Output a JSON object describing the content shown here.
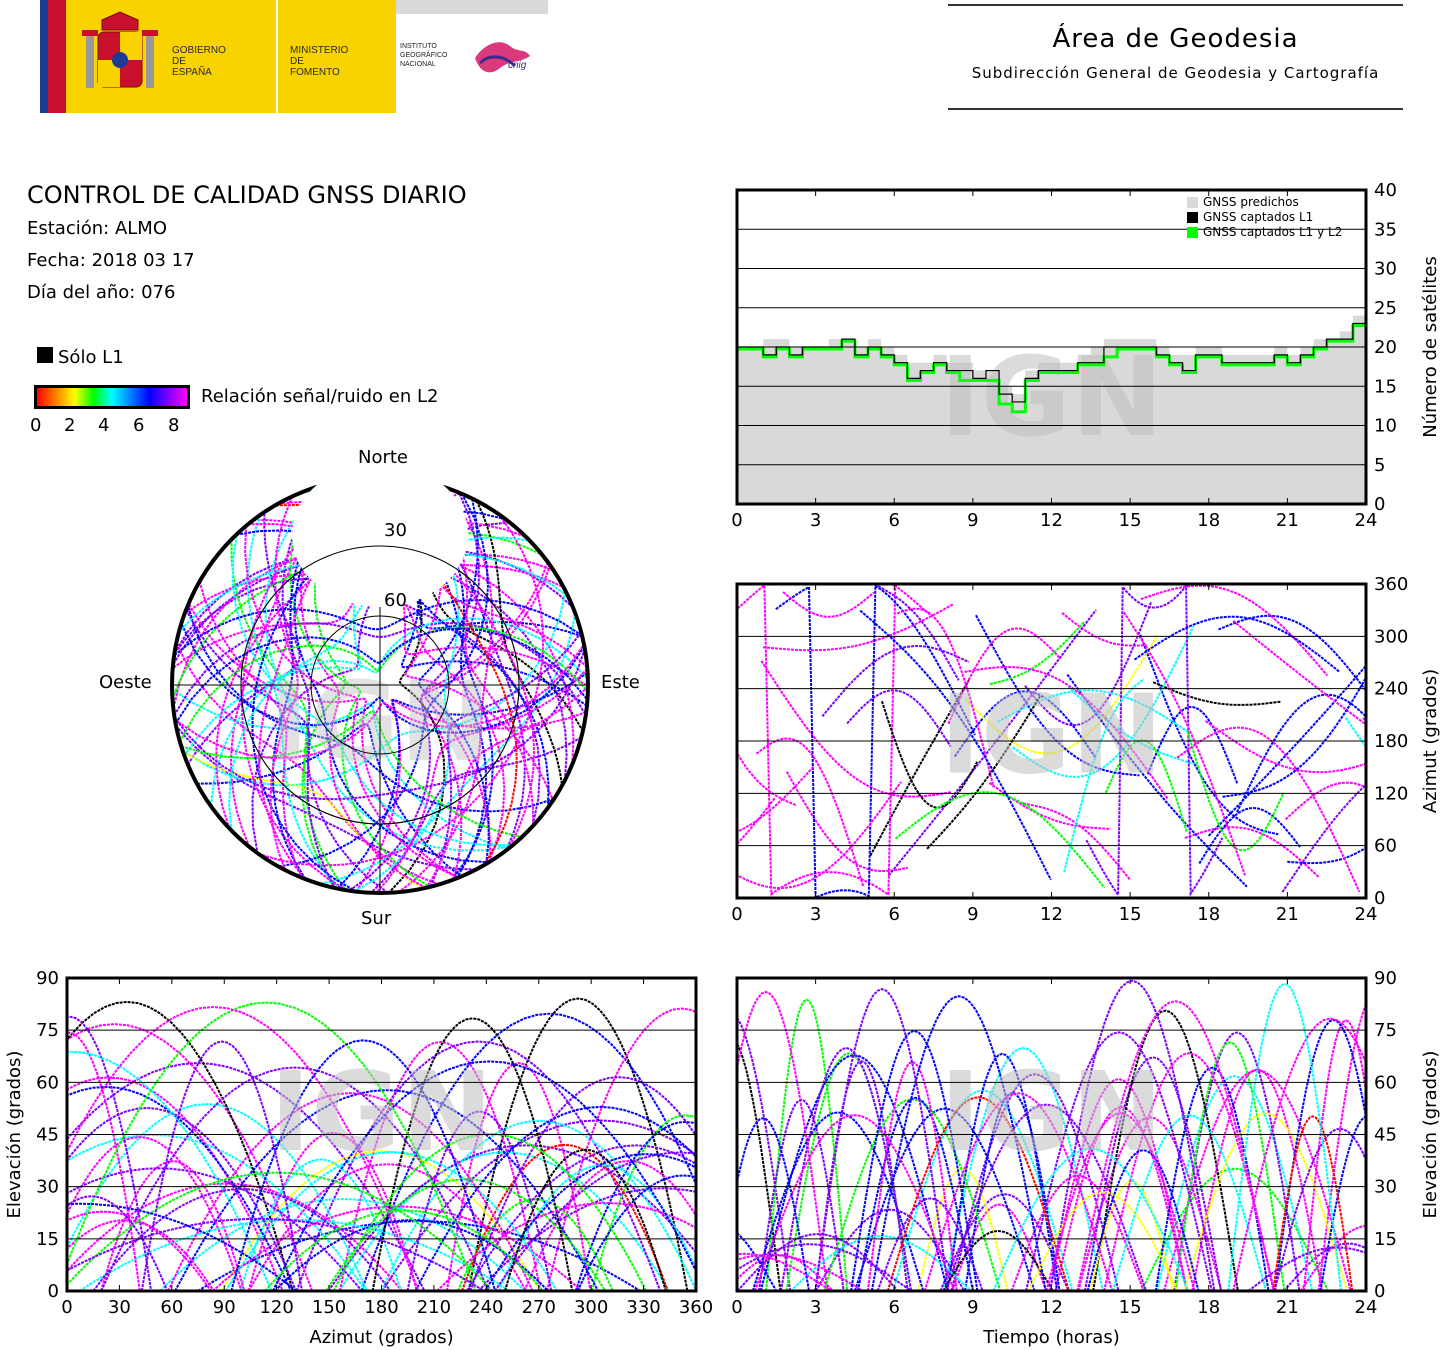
{
  "header": {
    "gov_name": [
      "GOBIERNO",
      "DE ESPAÑA"
    ],
    "ministry": [
      "MINISTERIO",
      "DE FOMENTO"
    ],
    "institute": [
      "INSTITUTO",
      "GEOGRÁFICO",
      "NACIONAL"
    ],
    "cnig": "cnig",
    "area_title": "Área de Geodesia",
    "area_subtitle": "Subdirección General de Geodesia y Cartografía"
  },
  "info": {
    "title": "CONTROL DE CALIDAD GNSS DIARIO",
    "station": "Estación: ALMO",
    "date": "Fecha: 2018 03 17",
    "doy": "Día del año: 076"
  },
  "legend": {
    "l1_only": "Sólo L1",
    "snr_label": "Relación señal/ruido en L2",
    "snr_ticks": [
      "0",
      "2",
      "4",
      "6",
      "8"
    ]
  },
  "watermark": "IGN",
  "colors": {
    "predicted": "#d9d9d9",
    "l1": "#000000",
    "l1l2": "#00ff00",
    "snr_scale": [
      "#ff0000",
      "#ff8000",
      "#ffff00",
      "#00ff00",
      "#00ffff",
      "#0000ff",
      "#8000ff",
      "#ff00ff"
    ]
  },
  "chart_data": [
    {
      "type": "line",
      "name": "satellite-count",
      "x": [
        0,
        0.5,
        1,
        1.5,
        2,
        2.5,
        3,
        3.5,
        4,
        4.5,
        5,
        5.5,
        6,
        6.5,
        7,
        7.5,
        8,
        8.5,
        9,
        9.5,
        10,
        10.5,
        11,
        11.5,
        12,
        12.5,
        13,
        13.5,
        14,
        14.5,
        15,
        15.5,
        16,
        16.5,
        17,
        17.5,
        18,
        18.5,
        19,
        19.5,
        20,
        20.5,
        21,
        21.5,
        22,
        22.5,
        23,
        23.5,
        24
      ],
      "series": [
        {
          "name": "GNSS predichos",
          "values": [
            20,
            20,
            21,
            21,
            20,
            20,
            20,
            21,
            21,
            20,
            21,
            20,
            19,
            18,
            18,
            19,
            18,
            18,
            17,
            17,
            15,
            14,
            17,
            18,
            18,
            18,
            19,
            20,
            21,
            21,
            21,
            21,
            20,
            19,
            19,
            20,
            20,
            19,
            19,
            19,
            19,
            20,
            19,
            20,
            21,
            21,
            22,
            24,
            21
          ]
        },
        {
          "name": "GNSS captados L1",
          "values": [
            20,
            20,
            19,
            20,
            19,
            20,
            20,
            20,
            21,
            19,
            20,
            19,
            18,
            16,
            17,
            18,
            17,
            17,
            16,
            17,
            14,
            13,
            16,
            17,
            17,
            17,
            18,
            18,
            20,
            20,
            20,
            20,
            19,
            18,
            17,
            19,
            19,
            18,
            18,
            18,
            18,
            19,
            18,
            19,
            20,
            21,
            21,
            23,
            20
          ]
        },
        {
          "name": "GNSS captados L1 y L2",
          "values": [
            20,
            20,
            19,
            20,
            19,
            20,
            20,
            20,
            21,
            19,
            20,
            19,
            18,
            16,
            17,
            18,
            17,
            16,
            16,
            16,
            13,
            12,
            16,
            17,
            17,
            17,
            18,
            18,
            19,
            20,
            20,
            20,
            19,
            18,
            17,
            19,
            19,
            18,
            18,
            18,
            18,
            19,
            18,
            19,
            20,
            21,
            21,
            23,
            19
          ]
        }
      ],
      "xlim": [
        0,
        24
      ],
      "ylim": [
        0,
        40
      ],
      "ylabel": "Número de satélites",
      "xticks": [
        "0",
        "3",
        "6",
        "9",
        "12",
        "15",
        "18",
        "21",
        "24"
      ],
      "yticks": [
        "0",
        "5",
        "10",
        "15",
        "20",
        "25",
        "30",
        "35",
        "40"
      ],
      "grid": true,
      "legend_position": "top-right"
    },
    {
      "type": "scatter",
      "name": "sky-plot",
      "labels": {
        "north": "Norte",
        "south": "Sur",
        "west": "Oeste",
        "east": "Este"
      },
      "elevation_rings": [
        "30",
        "60"
      ],
      "description_source": "satellite tracks colored by L2 SNR"
    },
    {
      "type": "scatter",
      "name": "azimuth-vs-time",
      "xlim": [
        0,
        24
      ],
      "ylim": [
        0,
        360
      ],
      "ylabel": "Azimut (grados)",
      "xticks": [
        "0",
        "3",
        "6",
        "9",
        "12",
        "15",
        "18",
        "21",
        "24"
      ],
      "yticks": [
        "0",
        "60",
        "120",
        "180",
        "240",
        "300",
        "360"
      ],
      "grid": true
    },
    {
      "type": "scatter",
      "name": "elevation-vs-azimuth",
      "xlim": [
        0,
        360
      ],
      "ylim": [
        0,
        90
      ],
      "xlabel": "Azimut (grados)",
      "ylabel": "Elevación (grados)",
      "xticks": [
        "0",
        "30",
        "60",
        "90",
        "120",
        "150",
        "180",
        "210",
        "240",
        "270",
        "300",
        "330",
        "360"
      ],
      "yticks": [
        "0",
        "15",
        "30",
        "45",
        "60",
        "75",
        "90"
      ],
      "grid": true
    },
    {
      "type": "scatter",
      "name": "elevation-vs-time",
      "xlim": [
        0,
        24
      ],
      "ylim": [
        0,
        90
      ],
      "xlabel": "Tiempo (horas)",
      "ylabel": "Elevación (grados)",
      "xticks": [
        "0",
        "3",
        "6",
        "9",
        "12",
        "15",
        "18",
        "21",
        "24"
      ],
      "yticks": [
        "0",
        "15",
        "30",
        "45",
        "60",
        "75",
        "90"
      ],
      "grid": true
    }
  ]
}
